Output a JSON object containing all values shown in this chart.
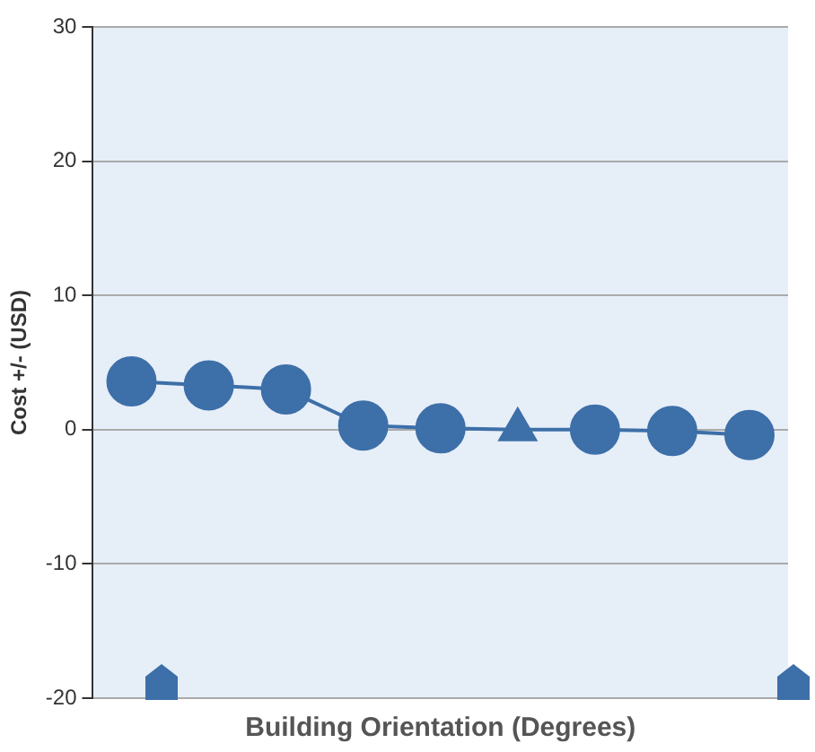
{
  "chart_data": {
    "type": "line",
    "xlabel": "Building Orientation (Degrees)",
    "ylabel": "Cost +/- (USD)",
    "categories": [
      null,
      null,
      null,
      null,
      null,
      null,
      null,
      null,
      null
    ],
    "series": [
      {
        "color": "#3d6fa8",
        "values": [
          3.6,
          3.3,
          3.0,
          0.3,
          0.1,
          0,
          0,
          -0.1,
          -0.4
        ],
        "marker": "circle"
      },
      {
        "type": "scatter",
        "color": "#3d6fa8",
        "values": [
          null,
          null,
          null,
          null,
          null,
          0,
          null,
          null,
          null
        ],
        "marker": "triangle"
      }
    ],
    "ylim": [
      -20,
      30
    ],
    "yticks": [
      -20,
      -10,
      0,
      10,
      20,
      30
    ],
    "grid": "y",
    "legend": false,
    "tick_labels": "y"
  }
}
